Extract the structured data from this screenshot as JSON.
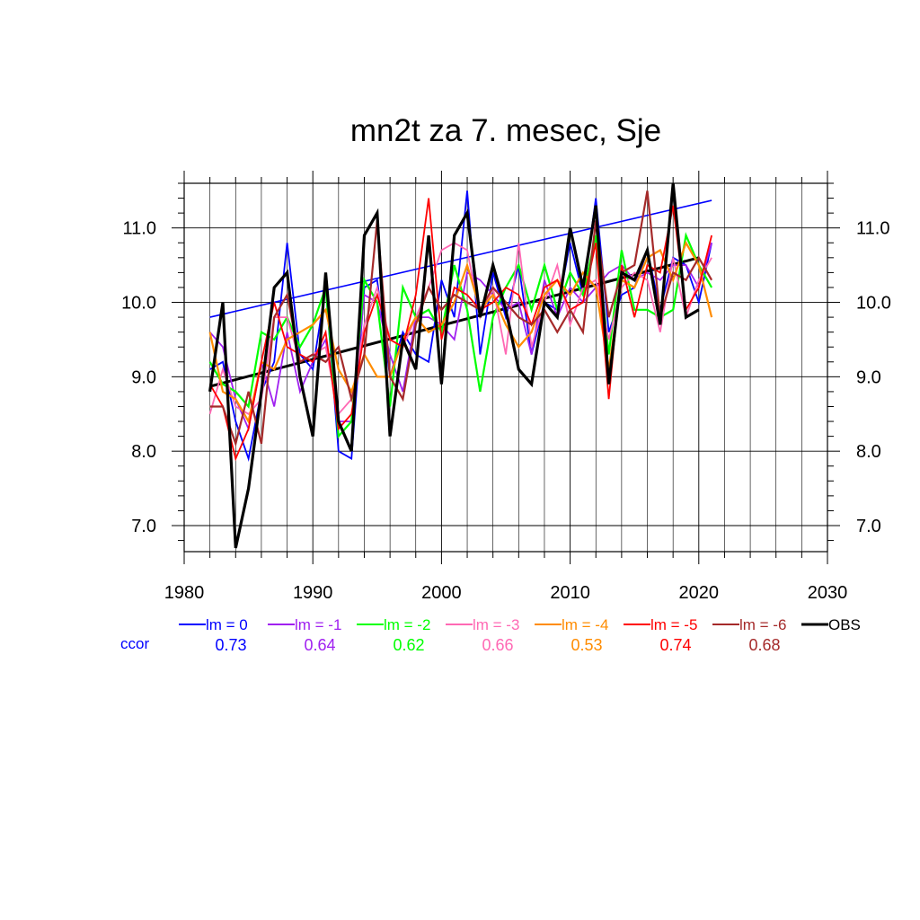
{
  "chart_data": {
    "type": "line",
    "title": "mn2t za 7. mesec, Sje",
    "xlim": [
      1980,
      2030
    ],
    "ylim": [
      6.65,
      11.6
    ],
    "x_ticks": [
      1980,
      1990,
      2000,
      2010,
      2020,
      2030
    ],
    "x_tick_labels": [
      "1980",
      "1990",
      "2000",
      "2010",
      "2020",
      "2030"
    ],
    "y_ticks": [
      7.0,
      8.0,
      9.0,
      10.0,
      11.0
    ],
    "y_tick_labels": [
      "7.0",
      "8.0",
      "9.0",
      "10.0",
      "11.0"
    ],
    "grid": true,
    "x": [
      1982,
      1983,
      1984,
      1985,
      1986,
      1987,
      1988,
      1989,
      1990,
      1991,
      1992,
      1993,
      1994,
      1995,
      1996,
      1997,
      1998,
      1999,
      2000,
      2001,
      2002,
      2003,
      2004,
      2005,
      2006,
      2007,
      2008,
      2009,
      2010,
      2011,
      2012,
      2013,
      2014,
      2015,
      2016,
      2017,
      2018,
      2019,
      2020,
      2021
    ],
    "series": [
      {
        "name": "lm = 0",
        "color": "#0000ff",
        "width": 1.8,
        "values": [
          9.1,
          9.2,
          8.4,
          7.9,
          8.8,
          9.2,
          10.8,
          9.3,
          9.1,
          10.2,
          8.0,
          7.9,
          10.2,
          10.3,
          9.0,
          9.6,
          9.3,
          9.2,
          10.3,
          9.8,
          11.5,
          9.3,
          10.4,
          9.8,
          10.5,
          9.3,
          10.0,
          9.9,
          10.8,
          10.1,
          11.4,
          9.6,
          10.1,
          10.2,
          10.7,
          9.9,
          10.6,
          10.5,
          10.0,
          10.8
        ]
      },
      {
        "name": "lm = -1",
        "color": "#a020f0",
        "width": 1.8,
        "values": [
          9.6,
          9.4,
          8.7,
          8.3,
          9.2,
          8.6,
          9.6,
          8.8,
          9.2,
          9.5,
          8.4,
          8.4,
          10.1,
          10.0,
          9.3,
          8.8,
          9.8,
          9.8,
          9.7,
          9.5,
          10.4,
          10.3,
          10.1,
          9.9,
          10.0,
          9.3,
          10.3,
          9.8,
          10.2,
          10.0,
          10.2,
          10.4,
          10.5,
          10.3,
          10.4,
          10.3,
          10.5,
          10.5,
          10.2,
          10.8
        ]
      },
      {
        "name": "lm = -2",
        "color": "#00ff00",
        "width": 2.2,
        "values": [
          9.2,
          8.9,
          8.8,
          8.6,
          9.6,
          9.5,
          9.8,
          9.4,
          9.7,
          10.2,
          8.2,
          8.4,
          10.3,
          10.0,
          8.6,
          10.2,
          9.8,
          9.9,
          9.6,
          10.5,
          9.9,
          8.8,
          9.8,
          10.2,
          10.5,
          9.9,
          10.5,
          9.9,
          10.4,
          10.1,
          10.9,
          9.3,
          10.7,
          9.9,
          9.9,
          9.8,
          9.9,
          10.9,
          10.5,
          10.2
        ]
      },
      {
        "name": "lm = -3",
        "color": "#ff69b4",
        "width": 1.8,
        "values": [
          8.5,
          9.1,
          8.6,
          8.5,
          8.7,
          9.8,
          9.8,
          9.2,
          9.3,
          9.4,
          8.5,
          8.7,
          9.7,
          10.2,
          9.5,
          9.4,
          9.8,
          10.2,
          10.7,
          10.8,
          10.7,
          9.8,
          10.2,
          9.3,
          10.8,
          9.4,
          10.0,
          10.5,
          9.7,
          10.2,
          10.3,
          9.5,
          10.2,
          10.4,
          10.3,
          9.6,
          10.6,
          9.8,
          10.3,
          10.6
        ]
      },
      {
        "name": "lm = -4",
        "color": "#ff8c00",
        "width": 2.2,
        "values": [
          9.6,
          8.8,
          8.7,
          8.4,
          9.2,
          9.1,
          9.5,
          9.6,
          9.7,
          9.9,
          9.1,
          8.8,
          9.3,
          9.0,
          9.0,
          9.5,
          9.8,
          9.6,
          9.7,
          10.0,
          10.5,
          9.9,
          10.1,
          9.7,
          9.4,
          9.6,
          10.1,
          10.3,
          10.1,
          10.4,
          10.2,
          9.1,
          10.3,
          10.2,
          10.6,
          10.7,
          10.3,
          10.8,
          10.5,
          9.8
        ]
      },
      {
        "name": "lm = -5",
        "color": "#ff0000",
        "width": 1.8,
        "values": [
          8.9,
          8.6,
          7.9,
          8.3,
          9.2,
          10.0,
          9.4,
          9.3,
          9.2,
          9.6,
          8.3,
          8.5,
          9.6,
          10.1,
          9.5,
          9.4,
          10.1,
          11.4,
          9.5,
          10.2,
          10.1,
          9.9,
          10.0,
          10.2,
          10.1,
          9.7,
          10.2,
          10.3,
          9.9,
          10.0,
          10.8,
          8.7,
          10.5,
          9.8,
          10.5,
          10.4,
          11.3,
          9.9,
          10.2,
          10.9
        ]
      },
      {
        "name": "lm = -6",
        "color": "#a52a2a",
        "width": 2.2,
        "values": [
          8.6,
          8.6,
          8.1,
          8.8,
          8.1,
          9.8,
          10.1,
          9.2,
          9.3,
          9.2,
          9.4,
          8.7,
          9.3,
          11.1,
          9.0,
          8.7,
          9.7,
          10.2,
          9.9,
          10.1,
          10.0,
          9.9,
          10.2,
          10.0,
          9.8,
          9.7,
          9.9,
          9.6,
          9.9,
          9.6,
          11.1,
          9.8,
          10.4,
          10.5,
          11.5,
          9.8,
          10.4,
          10.3,
          10.6,
          10.3
        ]
      },
      {
        "name": "OBS",
        "color": "#000000",
        "width": 3.2,
        "values": [
          8.8,
          10.0,
          6.7,
          7.5,
          8.8,
          10.2,
          10.4,
          9.0,
          8.2,
          10.4,
          8.4,
          8.0,
          10.9,
          11.2,
          8.2,
          9.5,
          9.1,
          10.9,
          8.9,
          10.9,
          11.2,
          9.8,
          10.5,
          9.9,
          9.1,
          8.9,
          10.0,
          9.8,
          11.0,
          10.2,
          11.3,
          8.9,
          10.4,
          10.3,
          10.7,
          9.7,
          11.6,
          9.8,
          9.9,
          null
        ]
      }
    ],
    "trend_lines": [
      {
        "series": "lm = 0",
        "color": "#0000ff",
        "width": 1.6,
        "x": [
          1982,
          2021
        ],
        "y": [
          9.8,
          11.37
        ]
      },
      {
        "series": "OBS",
        "color": "#000000",
        "width": 3.0,
        "x": [
          1982,
          2020
        ],
        "y": [
          8.87,
          10.6
        ]
      }
    ],
    "ccor_label": "ccor",
    "ccor_color": "#0000ff",
    "ccor": [
      "0.73",
      "0.64",
      "0.62",
      "0.66",
      "0.53",
      "0.74",
      "0.68"
    ]
  }
}
